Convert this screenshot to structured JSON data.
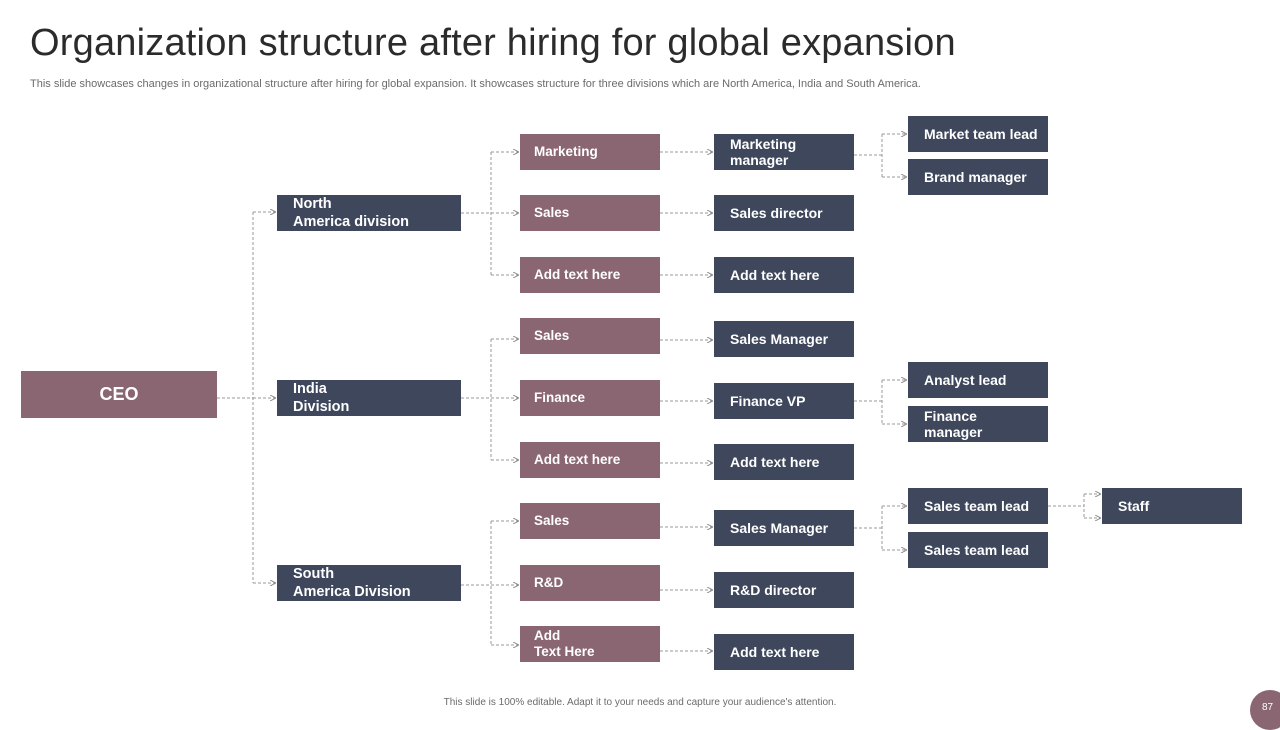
{
  "title": "Organization structure after hiring for global expansion",
  "subtitle": "This slide showcases changes in organizational structure after hiring for global expansion. It showcases structure for three divisions which are North America, India and South America.",
  "ceo": "CEO",
  "divisions": {
    "north_america": "North\nAmerica division",
    "india": "India\nDivision",
    "south_america": "South\nAmerica Division"
  },
  "north_america": {
    "departments": [
      "Marketing",
      "Sales",
      "Add text here"
    ],
    "managers": [
      "Marketing\nmanager",
      "Sales director",
      "Add text here"
    ],
    "reports": [
      "Market team lead",
      "Brand manager"
    ]
  },
  "india": {
    "departments": [
      "Sales",
      "Finance",
      "Add text here"
    ],
    "managers": [
      "Sales Manager",
      "Finance VP",
      "Add text here"
    ],
    "reports": [
      "Analyst  lead",
      "Finance\nmanager"
    ]
  },
  "south_america": {
    "departments": [
      "Sales",
      "R&D",
      "Add\nText Here"
    ],
    "managers": [
      "Sales Manager",
      "R&D  director",
      "Add text here"
    ],
    "reports": [
      "Sales team lead",
      "Sales team lead"
    ],
    "staff": "Staff"
  },
  "footer": "This slide is 100% editable.  Adapt it to your needs and capture your audience's attention.",
  "page_number": "87",
  "colors": {
    "accent_purple": "#8a6672",
    "navy": "#3e475b"
  }
}
